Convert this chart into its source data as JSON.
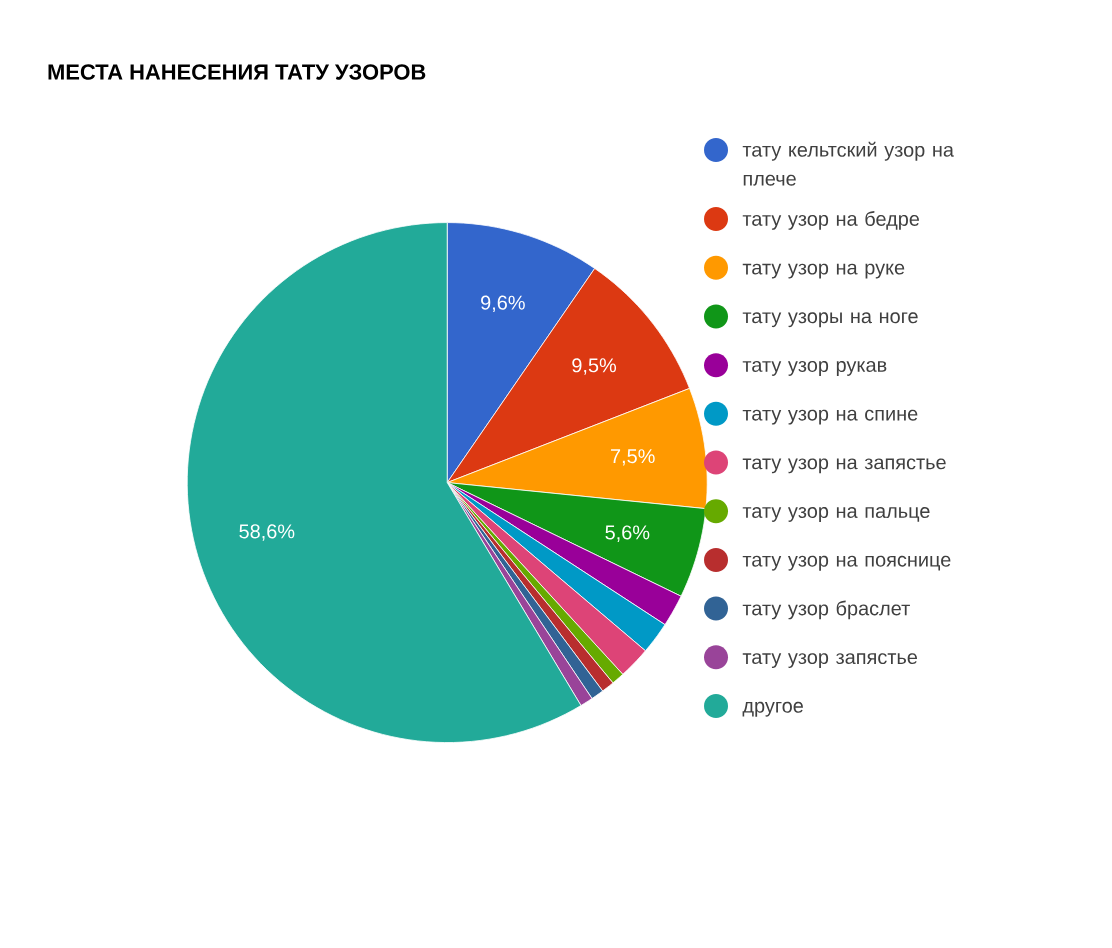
{
  "chart_data": {
    "type": "pie",
    "title": "МЕСТА НАНЕСЕНИЯ ТАТУ УЗОРОВ",
    "categories": [
      "тату кельтский узор на плече",
      "тату узор на бедре",
      "тату узор на руке",
      "тату узоры на ноге",
      "тату узор рукав",
      "тату узор на спине",
      "тату узор на запястье",
      "тату узор на пальце",
      "тату узор на пояснице",
      "тату узор браслет",
      "тату узор запястье",
      "другое"
    ],
    "values": [
      9.6,
      9.5,
      7.5,
      5.6,
      2.0,
      2.0,
      2.0,
      0.8,
      0.8,
      0.8,
      0.8,
      58.6
    ],
    "value_labels": [
      "9,6%",
      "9,5%",
      "7,5%",
      "5,6%",
      null,
      null,
      null,
      null,
      null,
      null,
      null,
      "58,6%"
    ],
    "colors": [
      "#3366cc",
      "#dc3912",
      "#ff9900",
      "#109618",
      "#990099",
      "#0099c6",
      "#dd4477",
      "#66aa00",
      "#b82e2e",
      "#316395",
      "#994499",
      "#22aa99"
    ],
    "legend": "right"
  }
}
